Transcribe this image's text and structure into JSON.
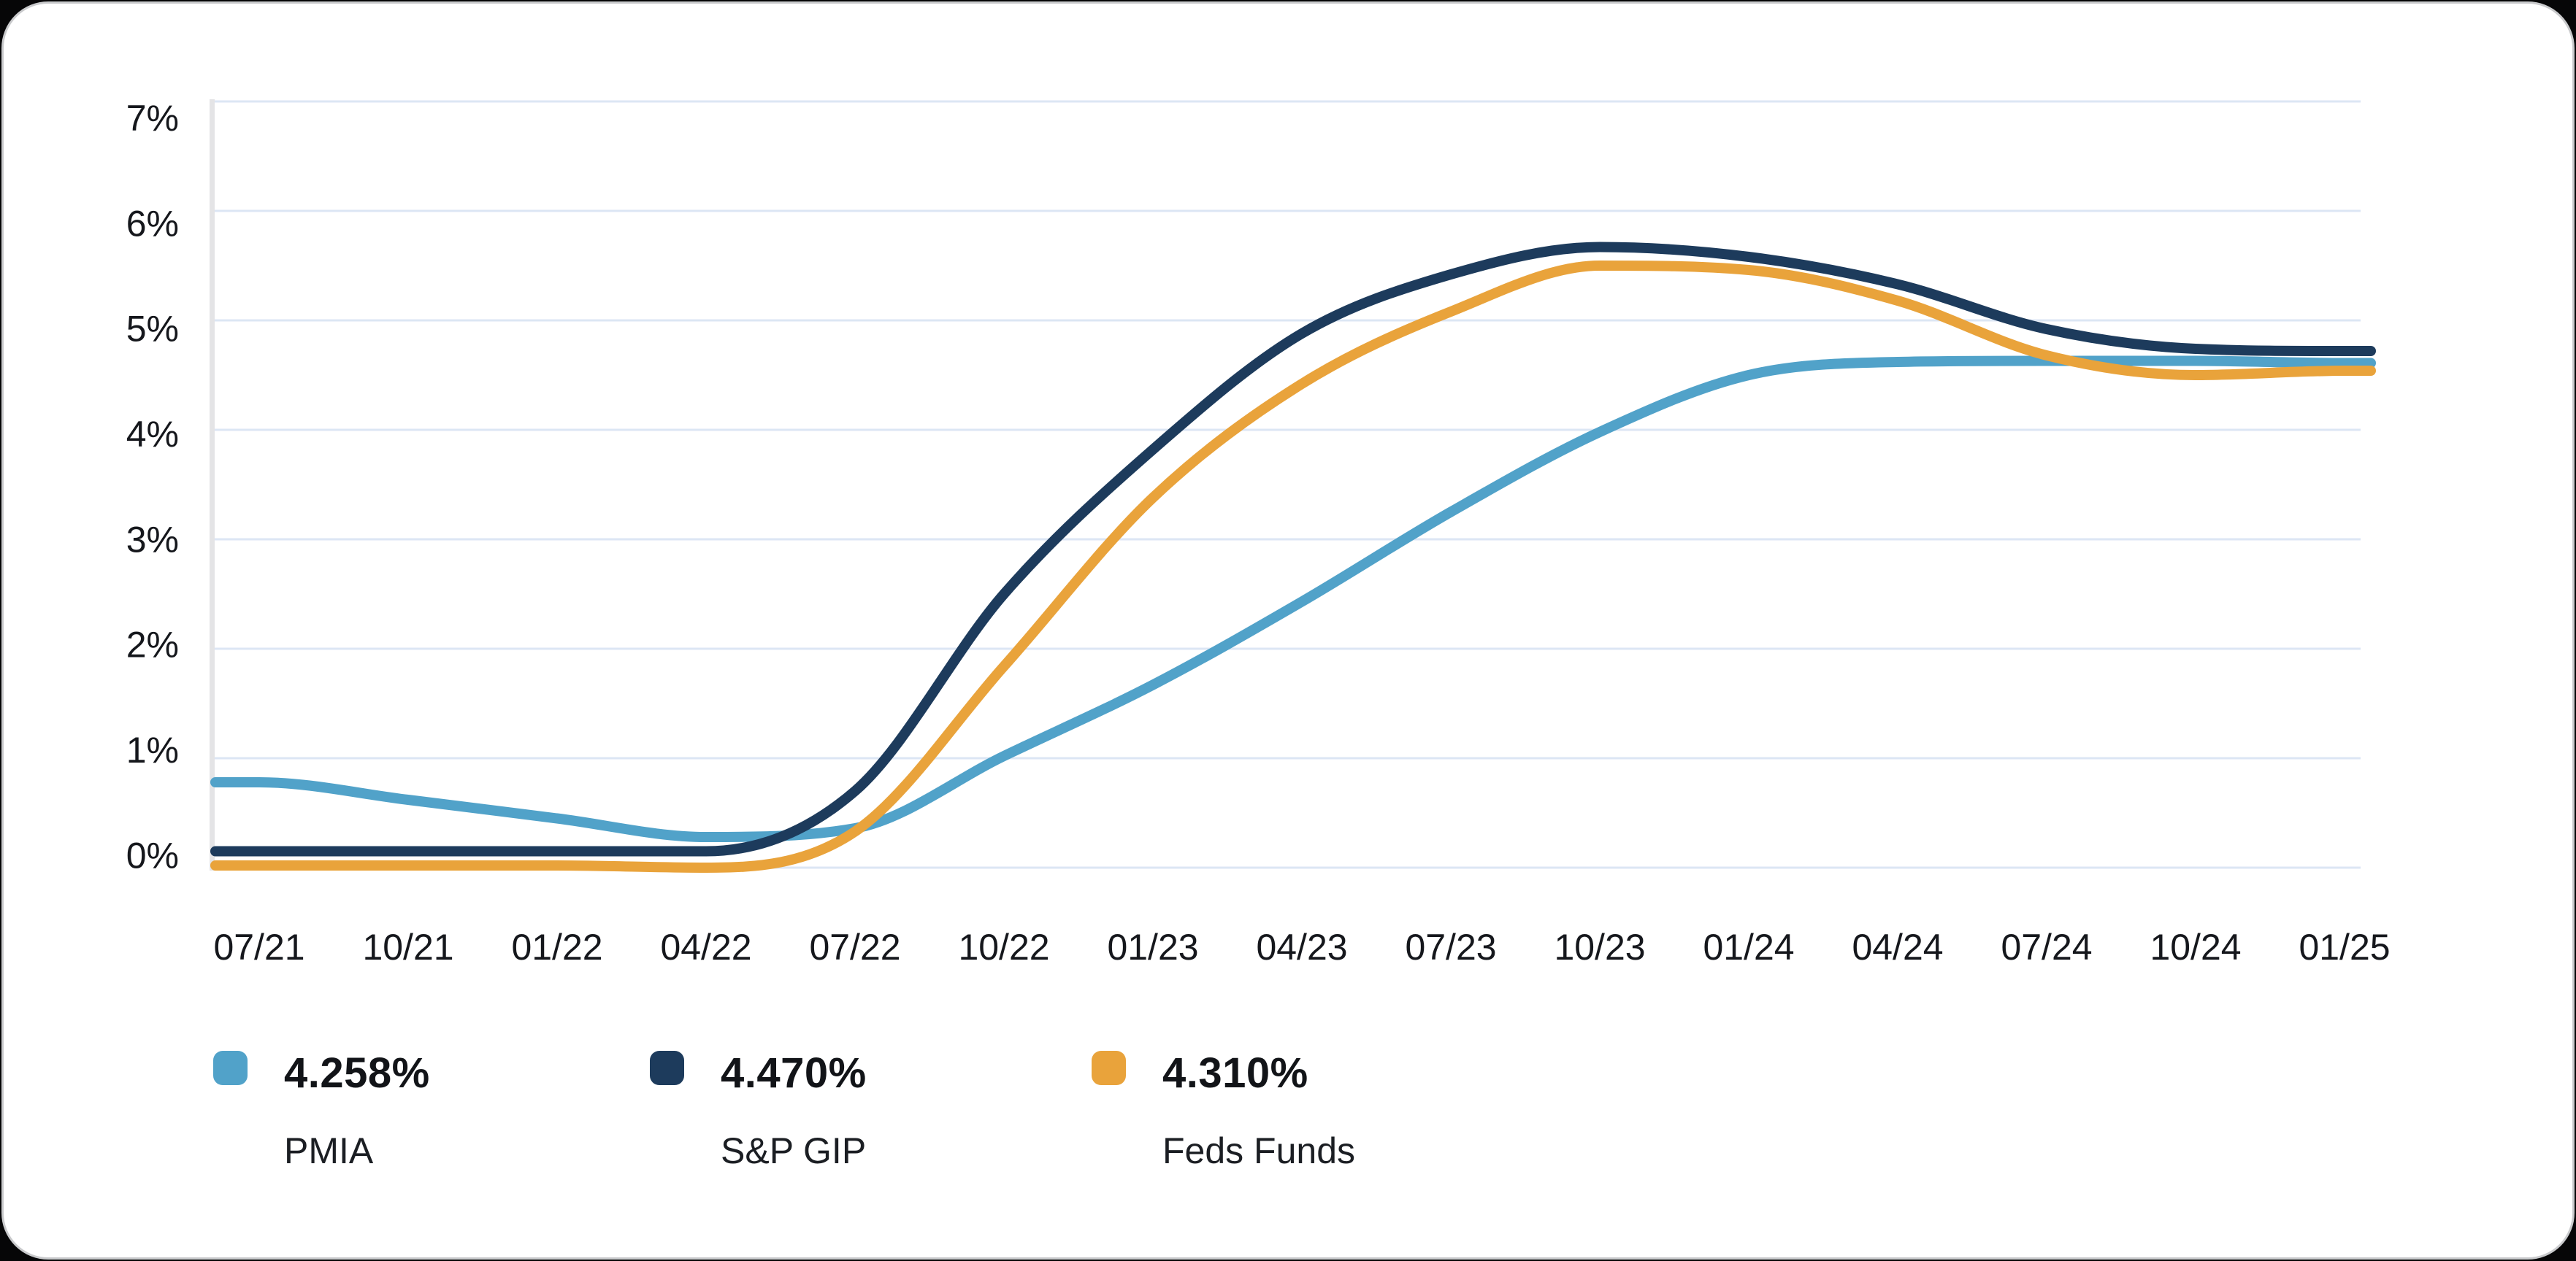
{
  "chart_data": {
    "type": "line",
    "categories": [
      "07/21",
      "10/21",
      "01/22",
      "04/22",
      "07/22",
      "10/22",
      "01/23",
      "04/23",
      "07/23",
      "10/23",
      "01/24",
      "04/24",
      "07/24",
      "10/24",
      "01/25"
    ],
    "y_tick_labels": [
      "7%",
      "6%",
      "5%",
      "4%",
      "3%",
      "2%",
      "1%",
      "0%"
    ],
    "ylim": [
      0,
      7
    ],
    "grid": true,
    "legend_position": "bottom",
    "series": [
      {
        "name": "PMIA",
        "current_label": "4.258%",
        "color": "#51a2c9",
        "values": [
          0.78,
          0.62,
          0.45,
          0.28,
          0.36,
          1.02,
          1.67,
          2.43,
          3.25,
          3.98,
          4.5,
          4.62,
          4.63,
          4.63,
          4.61
        ]
      },
      {
        "name": "S&P GIP",
        "current_label": "4.470%",
        "color": "#1d3b5c",
        "values": [
          0.15,
          0.15,
          0.15,
          0.15,
          0.7,
          2.5,
          3.82,
          4.88,
          5.42,
          5.67,
          5.58,
          5.33,
          4.92,
          4.74,
          4.72
        ]
      },
      {
        "name": "Feds Funds",
        "current_label": "4.310%",
        "color": "#e9a33b",
        "values": [
          0.02,
          0.02,
          0.02,
          0.0,
          0.33,
          1.84,
          3.38,
          4.42,
          5.08,
          5.5,
          5.46,
          5.18,
          4.68,
          4.5,
          4.54
        ]
      }
    ]
  }
}
